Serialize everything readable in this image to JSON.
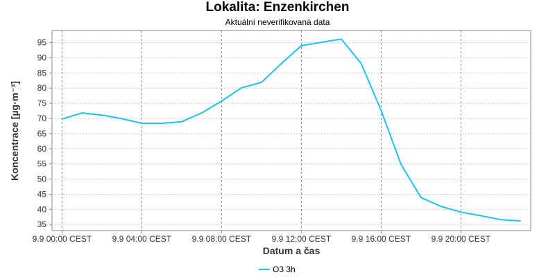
{
  "chart_data": {
    "type": "line",
    "title": "Lokalita: Enzenkirchen",
    "subtitle": "Aktuální neverifikovaná data",
    "xlabel": "Datum a čas",
    "ylabel": "Koncentrace [µg·m⁻³]",
    "ylim": [
      33,
      99
    ],
    "xlim_hours": [
      -0.5,
      23.5
    ],
    "grid": true,
    "legend_position": "bottom",
    "yticks": [
      35,
      40,
      45,
      50,
      55,
      60,
      65,
      70,
      75,
      80,
      85,
      90,
      95
    ],
    "xticks": [
      {
        "hour": 0,
        "label": "9.9 00:00 CEST"
      },
      {
        "hour": 4,
        "label": "9.9 04:00 CEST"
      },
      {
        "hour": 8,
        "label": "9.9 08:00 CEST"
      },
      {
        "hour": 12,
        "label": "9.9 12:00 CEST"
      },
      {
        "hour": 16,
        "label": "9.9 16:00 CEST"
      },
      {
        "hour": 20,
        "label": "9.9 20:00 CEST"
      }
    ],
    "series": [
      {
        "name": "O3 3h",
        "color": "#1ec0f0",
        "x": [
          0,
          1,
          2,
          3,
          4,
          5,
          6,
          7,
          8,
          9,
          10,
          11,
          12,
          13,
          14,
          15,
          16,
          17,
          18,
          19,
          20,
          21,
          22,
          23
        ],
        "values": [
          69.8,
          71.8,
          71.1,
          69.9,
          68.4,
          68.4,
          68.9,
          71.8,
          75.7,
          80.1,
          81.9,
          88.1,
          94.0,
          95.1,
          96.2,
          88.1,
          72.6,
          54.8,
          43.9,
          41.0,
          39.1,
          37.9,
          36.6,
          36.2
        ]
      }
    ]
  }
}
